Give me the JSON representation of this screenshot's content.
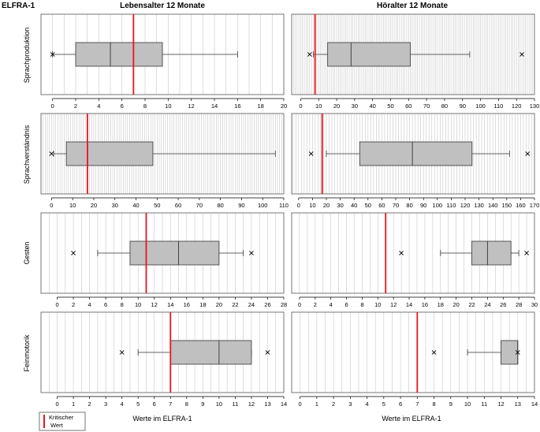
{
  "figure": {
    "corner_label": "ELFRA-1",
    "column_titles": [
      "Lebensalter 12 Monate",
      "Höralter 12 Monate"
    ],
    "row_labels": [
      "Sprachproduktion",
      "Sprachverständnis",
      "Gesten",
      "Feinmotorik"
    ],
    "xlabel": "Werte im ELFRA-1",
    "legend": {
      "line1": "Kritischer",
      "line2": "Wert"
    },
    "colors": {
      "box_fill": "#c0c0c0",
      "critical": "#e8141b",
      "grid": "#c8c8c8",
      "frame": "#555555"
    }
  },
  "chart_data": [
    {
      "type": "boxplot",
      "row": "Sprachproduktion",
      "column": "Lebensalter 12 Monate",
      "xlim": [
        -1,
        20
      ],
      "ticks": [
        0,
        2,
        4,
        6,
        8,
        10,
        12,
        14,
        16,
        18,
        20
      ],
      "grid_step": 1,
      "whisker_low": 0,
      "q1": 2,
      "median": 5,
      "q3": 9.5,
      "whisker_high": 16,
      "outliers": [
        0
      ],
      "critical_value": 7
    },
    {
      "type": "boxplot",
      "row": "Sprachproduktion",
      "column": "Höralter 12 Monate",
      "xlim": [
        -5,
        130
      ],
      "ticks": [
        0,
        10,
        20,
        30,
        40,
        50,
        60,
        70,
        80,
        90,
        100,
        110,
        120,
        130
      ],
      "grid_step": 1,
      "whisker_low": 7,
      "q1": 15,
      "median": 28,
      "q3": 61,
      "whisker_high": 94,
      "outliers": [
        5,
        123
      ],
      "critical_value": 8
    },
    {
      "type": "boxplot",
      "row": "Sprachverständnis",
      "column": "Lebensalter 12 Monate",
      "xlim": [
        -5,
        110
      ],
      "ticks": [
        0,
        10,
        20,
        30,
        40,
        50,
        60,
        70,
        80,
        90,
        100,
        110
      ],
      "grid_step": 1,
      "whisker_low": 1,
      "q1": 7,
      "median": 17,
      "q3": 48,
      "whisker_high": 106,
      "outliers": [
        0
      ],
      "critical_value": 17
    },
    {
      "type": "boxplot",
      "row": "Sprachverständnis",
      "column": "Höralter 12 Monate",
      "xlim": [
        -5,
        170
      ],
      "ticks": [
        0,
        10,
        20,
        30,
        40,
        50,
        60,
        70,
        80,
        90,
        100,
        110,
        120,
        130,
        140,
        150,
        160,
        170
      ],
      "grid_step": 2,
      "whisker_low": 20,
      "q1": 44,
      "median": 82,
      "q3": 125,
      "whisker_high": 152,
      "outliers": [
        9,
        165
      ],
      "critical_value": 17
    },
    {
      "type": "boxplot",
      "row": "Gesten",
      "column": "Lebensalter 12 Monate",
      "xlim": [
        -2,
        28
      ],
      "ticks": [
        0,
        2,
        4,
        6,
        8,
        10,
        12,
        14,
        16,
        18,
        20,
        22,
        24,
        26,
        28
      ],
      "grid_step": 1,
      "whisker_low": 5,
      "q1": 9,
      "median": 15,
      "q3": 20,
      "whisker_high": 23,
      "outliers": [
        2,
        24
      ],
      "critical_value": 11
    },
    {
      "type": "boxplot",
      "row": "Gesten",
      "column": "Höralter 12 Monate",
      "xlim": [
        -1,
        30
      ],
      "ticks": [
        0,
        2,
        4,
        6,
        8,
        10,
        12,
        14,
        16,
        18,
        20,
        22,
        24,
        26,
        28,
        30
      ],
      "grid_step": 1,
      "whisker_low": 18,
      "q1": 22,
      "median": 24,
      "q3": 27,
      "whisker_high": 28,
      "outliers": [
        13,
        29
      ],
      "critical_value": 11
    },
    {
      "type": "boxplot",
      "row": "Feinmotorik",
      "column": "Lebensalter 12 Monate",
      "xlim": [
        -1,
        14
      ],
      "ticks": [
        0,
        1,
        2,
        3,
        4,
        5,
        6,
        7,
        8,
        9,
        10,
        11,
        12,
        13,
        14
      ],
      "grid_step": 0.5,
      "whisker_low": 5,
      "q1": 7,
      "median": 10,
      "q3": 12,
      "whisker_high": 12,
      "outliers": [
        4,
        13
      ],
      "critical_value": 7
    },
    {
      "type": "boxplot",
      "row": "Feinmotorik",
      "column": "Höralter 12 Monate",
      "xlim": [
        -0.5,
        14
      ],
      "ticks": [
        0,
        1,
        2,
        3,
        4,
        5,
        6,
        7,
        8,
        9,
        10,
        11,
        12,
        13,
        14
      ],
      "grid_step": 0.5,
      "whisker_low": 10,
      "q1": 12,
      "median": 13,
      "q3": 13,
      "whisker_high": 13,
      "outliers": [
        8,
        13
      ],
      "critical_value": 7
    }
  ]
}
